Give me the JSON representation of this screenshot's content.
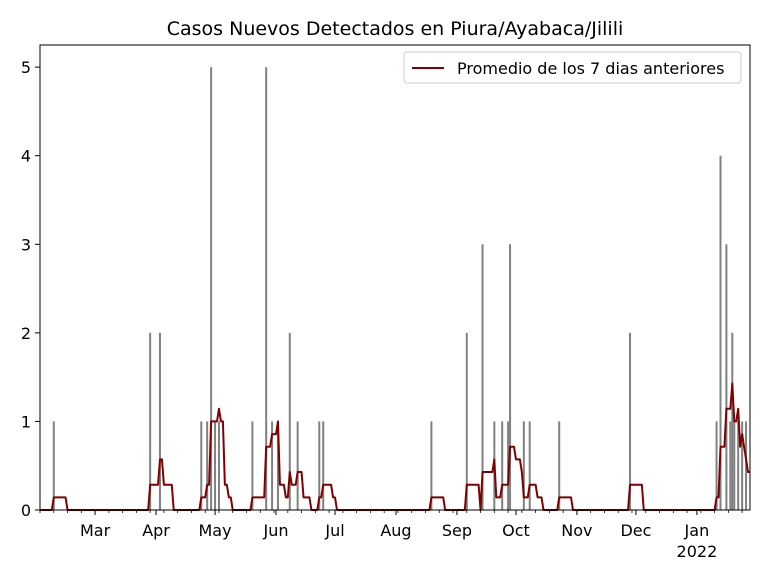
{
  "chart_data": {
    "type": "bar",
    "title": "Casos Nuevos Detectados en Piura/Ayabaca/Jilili",
    "xlabel": "",
    "ylabel": "",
    "x_range": [
      "2021-02-01",
      "2022-01-28"
    ],
    "ylim": [
      0,
      5.25
    ],
    "y_ticks": [
      0,
      1,
      2,
      3,
      4,
      5
    ],
    "x_ticks": [
      {
        "date": "2021-03-01",
        "label": "Mar"
      },
      {
        "date": "2021-04-01",
        "label": "Apr"
      },
      {
        "date": "2021-05-01",
        "label": "May"
      },
      {
        "date": "2021-06-01",
        "label": "Jun"
      },
      {
        "date": "2021-07-01",
        "label": "Jul"
      },
      {
        "date": "2021-08-01",
        "label": "Aug"
      },
      {
        "date": "2021-09-01",
        "label": "Sep"
      },
      {
        "date": "2021-10-01",
        "label": "Oct"
      },
      {
        "date": "2021-11-01",
        "label": "Nov"
      },
      {
        "date": "2021-12-01",
        "label": "Dec"
      },
      {
        "date": "2022-01-01",
        "label": "Jan",
        "sublabel": "2022"
      }
    ],
    "grid": false,
    "legend_position": "top-right",
    "series": [
      {
        "kind": "bars",
        "color": "#808080",
        "points": [
          {
            "date": "2021-02-08",
            "value": 1
          },
          {
            "date": "2021-03-29",
            "value": 2
          },
          {
            "date": "2021-04-03",
            "value": 2
          },
          {
            "date": "2021-04-24",
            "value": 1
          },
          {
            "date": "2021-04-27",
            "value": 1
          },
          {
            "date": "2021-04-29",
            "value": 5
          },
          {
            "date": "2021-05-01",
            "value": 1
          },
          {
            "date": "2021-05-03",
            "value": 1
          },
          {
            "date": "2021-05-20",
            "value": 1
          },
          {
            "date": "2021-05-27",
            "value": 5
          },
          {
            "date": "2021-05-30",
            "value": 1
          },
          {
            "date": "2021-06-02",
            "value": 1
          },
          {
            "date": "2021-06-08",
            "value": 2
          },
          {
            "date": "2021-06-12",
            "value": 1
          },
          {
            "date": "2021-06-23",
            "value": 1
          },
          {
            "date": "2021-06-25",
            "value": 1
          },
          {
            "date": "2021-08-19",
            "value": 1
          },
          {
            "date": "2021-09-06",
            "value": 2
          },
          {
            "date": "2021-09-14",
            "value": 3
          },
          {
            "date": "2021-09-20",
            "value": 1
          },
          {
            "date": "2021-09-24",
            "value": 1
          },
          {
            "date": "2021-09-27",
            "value": 1
          },
          {
            "date": "2021-09-28",
            "value": 3
          },
          {
            "date": "2021-10-05",
            "value": 1
          },
          {
            "date": "2021-10-08",
            "value": 1
          },
          {
            "date": "2021-10-23",
            "value": 1
          },
          {
            "date": "2021-11-28",
            "value": 2
          },
          {
            "date": "2022-01-11",
            "value": 1
          },
          {
            "date": "2022-01-13",
            "value": 4
          },
          {
            "date": "2022-01-16",
            "value": 3
          },
          {
            "date": "2022-01-18",
            "value": 1
          },
          {
            "date": "2022-01-19",
            "value": 2
          },
          {
            "date": "2022-01-20",
            "value": 1
          },
          {
            "date": "2022-01-22",
            "value": 1
          },
          {
            "date": "2022-01-24",
            "value": 1
          },
          {
            "date": "2022-01-26",
            "value": 1
          }
        ]
      },
      {
        "kind": "line",
        "name": "Promedio de los 7 dias anteriores",
        "color": "#800000"
      }
    ]
  }
}
